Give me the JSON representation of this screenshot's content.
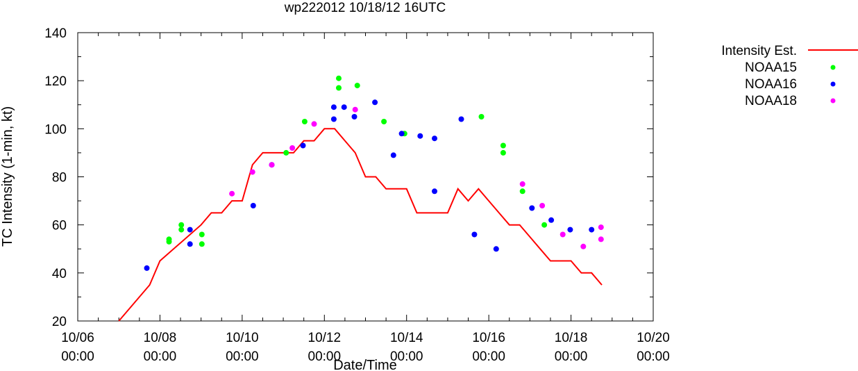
{
  "chart_data": {
    "type": "line+scatter",
    "title": "wp222012 10/18/12 16UTC",
    "xlabel": "Date/Time",
    "ylabel": "TC Intensity (1-min, kt)",
    "xlim": [
      0,
      14
    ],
    "ylim": [
      20,
      140
    ],
    "x_unit": "days since 10/06 00:00",
    "y_ticks": [
      20,
      40,
      60,
      80,
      100,
      120,
      140
    ],
    "x_ticks": [
      {
        "x": 0,
        "date": "10/06",
        "time": "00:00"
      },
      {
        "x": 2,
        "date": "10/08",
        "time": "00:00"
      },
      {
        "x": 4,
        "date": "10/10",
        "time": "00:00"
      },
      {
        "x": 6,
        "date": "10/12",
        "time": "00:00"
      },
      {
        "x": 8,
        "date": "10/14",
        "time": "00:00"
      },
      {
        "x": 10,
        "date": "10/16",
        "time": "00:00"
      },
      {
        "x": 12,
        "date": "10/18",
        "time": "00:00"
      },
      {
        "x": 14,
        "date": "10/20",
        "time": "00:00"
      }
    ],
    "x_minor_step": 0.5,
    "y_minor_step": 10,
    "grid": false,
    "legend_position": "top-right-outside",
    "series": [
      {
        "name": "Intensity Est.",
        "kind": "line",
        "color": "#ff0000",
        "points": [
          [
            1.0,
            20
          ],
          [
            1.75,
            35
          ],
          [
            2.0,
            45
          ],
          [
            2.5,
            52.5
          ],
          [
            3.0,
            60
          ],
          [
            3.25,
            65
          ],
          [
            3.5,
            65
          ],
          [
            3.75,
            70
          ],
          [
            4.0,
            70
          ],
          [
            4.25,
            85
          ],
          [
            4.5,
            90
          ],
          [
            4.75,
            90
          ],
          [
            5.0,
            90
          ],
          [
            5.25,
            90
          ],
          [
            5.5,
            95
          ],
          [
            5.75,
            95
          ],
          [
            6.0,
            100
          ],
          [
            6.25,
            100
          ],
          [
            6.5,
            95
          ],
          [
            6.75,
            90
          ],
          [
            7.0,
            80
          ],
          [
            7.25,
            80
          ],
          [
            7.5,
            75
          ],
          [
            7.75,
            75
          ],
          [
            8.0,
            75
          ],
          [
            8.25,
            65
          ],
          [
            8.5,
            65
          ],
          [
            8.75,
            65
          ],
          [
            9.0,
            65
          ],
          [
            9.25,
            75
          ],
          [
            9.5,
            70
          ],
          [
            9.75,
            75
          ],
          [
            10.0,
            70
          ],
          [
            10.25,
            65
          ],
          [
            10.5,
            60
          ],
          [
            10.75,
            60
          ],
          [
            11.0,
            55
          ],
          [
            11.25,
            50
          ],
          [
            11.5,
            45
          ],
          [
            11.75,
            45
          ],
          [
            12.0,
            45
          ],
          [
            12.25,
            40
          ],
          [
            12.5,
            40
          ],
          [
            12.75,
            35
          ]
        ]
      },
      {
        "name": "NOAA15",
        "kind": "scatter",
        "color": "#00ff00",
        "points": [
          [
            2.22,
            53
          ],
          [
            2.22,
            54
          ],
          [
            2.52,
            58
          ],
          [
            2.52,
            60
          ],
          [
            3.02,
            52
          ],
          [
            3.02,
            56
          ],
          [
            5.07,
            90
          ],
          [
            5.52,
            103
          ],
          [
            6.35,
            117
          ],
          [
            6.35,
            121
          ],
          [
            6.8,
            118
          ],
          [
            7.45,
            103
          ],
          [
            7.95,
            98
          ],
          [
            9.82,
            105
          ],
          [
            10.35,
            90
          ],
          [
            10.35,
            93
          ],
          [
            10.82,
            74
          ],
          [
            11.35,
            60
          ]
        ]
      },
      {
        "name": "NOAA16",
        "kind": "scatter",
        "color": "#0000ff",
        "points": [
          [
            1.68,
            42
          ],
          [
            2.73,
            52
          ],
          [
            2.73,
            58
          ],
          [
            4.27,
            68
          ],
          [
            4.72,
            85
          ],
          [
            5.48,
            93
          ],
          [
            6.23,
            104
          ],
          [
            6.23,
            109
          ],
          [
            6.48,
            109
          ],
          [
            6.73,
            105
          ],
          [
            7.23,
            111
          ],
          [
            7.68,
            89
          ],
          [
            7.88,
            98
          ],
          [
            8.33,
            97
          ],
          [
            8.68,
            96
          ],
          [
            8.68,
            74
          ],
          [
            9.33,
            104
          ],
          [
            9.65,
            56
          ],
          [
            10.18,
            50
          ],
          [
            11.05,
            67
          ],
          [
            11.52,
            62
          ],
          [
            11.98,
            58
          ],
          [
            12.5,
            58
          ]
        ]
      },
      {
        "name": "NOAA18",
        "kind": "scatter",
        "color": "#ff00ff",
        "points": [
          [
            3.75,
            73
          ],
          [
            4.25,
            82
          ],
          [
            4.72,
            85
          ],
          [
            5.22,
            92
          ],
          [
            5.75,
            102
          ],
          [
            6.75,
            108
          ],
          [
            10.82,
            77
          ],
          [
            11.3,
            68
          ],
          [
            11.8,
            56
          ],
          [
            12.3,
            51
          ],
          [
            12.73,
            54
          ],
          [
            12.73,
            59
          ]
        ]
      }
    ]
  }
}
